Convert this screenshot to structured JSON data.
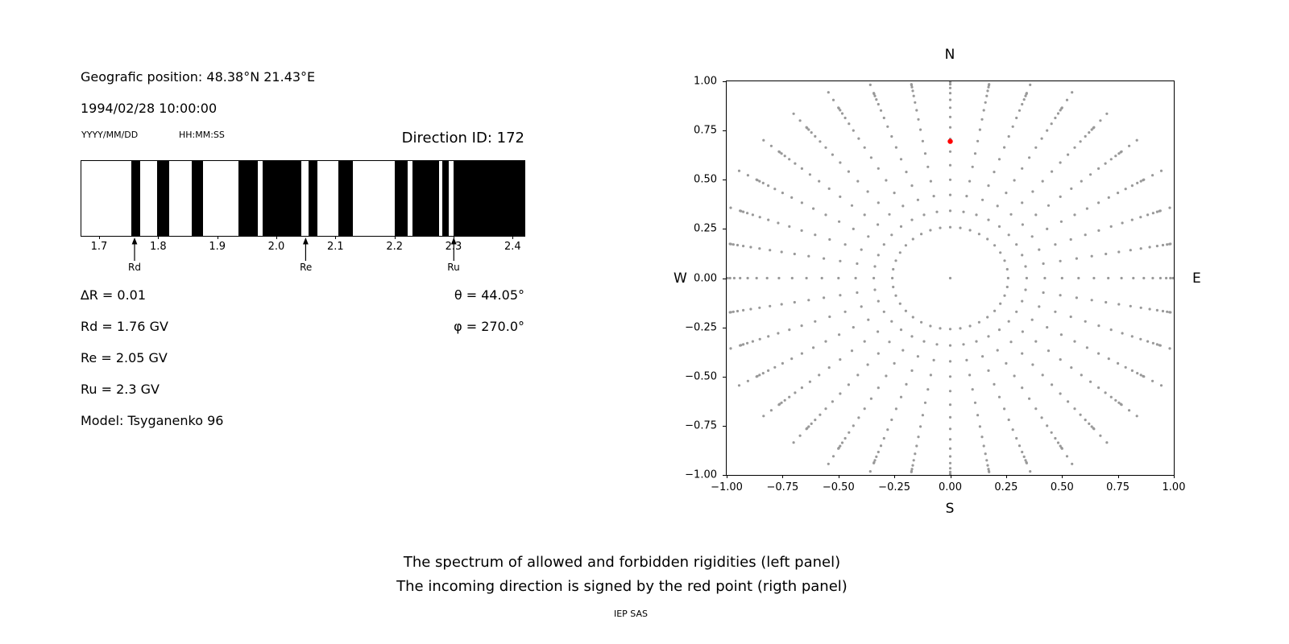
{
  "figure": {
    "background": "#ffffff",
    "text_color": "#000000"
  },
  "left_panel": {
    "geo_position": "Geografic position: 48.38°N 21.43°E",
    "datetime": "1994/02/28 10:00:00",
    "date_format_hint": "YYYY/MM/DD",
    "time_format_hint": "HH:MM:SS",
    "direction_id": "Direction ID: 172",
    "params": {
      "delta_r": "∆R = 0.01",
      "rd": "Rd = 1.76 GV",
      "re": "Re = 2.05 GV",
      "ru": "Ru = 2.3 GV",
      "model": "Model: Tsyganenko 96",
      "theta": "θ = 44.05°",
      "phi": "φ = 270.0°"
    }
  },
  "caption": {
    "line1": "The spectrum of allowed and forbidden rigidities (left panel)",
    "line2": "The incoming direction is signed by the red point (rigth panel)",
    "credit": "IEP SAS"
  },
  "chart_data": [
    {
      "id": "rigidity-spectrum",
      "type": "bar",
      "description": "Barcode-style spectrum: black bands = allowed rigidities, white = forbidden, penumbra between Rd and Ru",
      "xlim": [
        1.67,
        2.42
      ],
      "xtick_values": [
        1.7,
        1.8,
        1.9,
        2.0,
        2.1,
        2.2,
        2.3,
        2.4
      ],
      "xtick_labels": [
        "1.7",
        "1.8",
        "1.9",
        "2.0",
        "2.1",
        "2.2",
        "2.3",
        "2.4"
      ],
      "band_color": "#000000",
      "allowed_bands_gv": [
        [
          1.754,
          1.769
        ],
        [
          1.798,
          1.819
        ],
        [
          1.857,
          1.876
        ],
        [
          1.936,
          1.968
        ],
        [
          1.977,
          2.042
        ],
        [
          2.055,
          2.07
        ],
        [
          2.105,
          2.13
        ],
        [
          2.2,
          2.222
        ],
        [
          2.231,
          2.276
        ],
        [
          2.281,
          2.292
        ],
        [
          2.3,
          2.42
        ]
      ],
      "markers": [
        {
          "label": "Rd",
          "value": 1.76
        },
        {
          "label": "Re",
          "value": 2.05
        },
        {
          "label": "Ru",
          "value": 2.3
        }
      ]
    },
    {
      "id": "incoming-direction",
      "type": "scatter",
      "description": "Radial grid of gray direction dots (azimuth rays every 10 degrees, radii = sin(zenith)); red point marks the incoming direction",
      "xlim": [
        -1,
        1
      ],
      "ylim": [
        -1,
        1
      ],
      "xtick_values": [
        -1,
        -0.75,
        -0.5,
        -0.25,
        0,
        0.25,
        0.5,
        0.75,
        1
      ],
      "xtick_labels": [
        "−1.00",
        "−0.75",
        "−0.50",
        "−0.25",
        "0.00",
        "0.25",
        "0.50",
        "0.75",
        "1.00"
      ],
      "ytick_values": [
        1,
        0.75,
        0.5,
        0.25,
        0,
        -0.25,
        -0.5,
        -0.75,
        -1
      ],
      "ytick_labels": [
        "1.00",
        "0.75",
        "0.50",
        "0.25",
        "0.00",
        "−0.25",
        "−0.50",
        "−0.75",
        "−1.00"
      ],
      "compass": {
        "north": "N",
        "south": "S",
        "east": "E",
        "west": "W"
      },
      "grid": {
        "azimuth_start_deg": 0,
        "azimuth_step_deg": 10,
        "azimuth_count": 36,
        "ray_radii": [
          0.259,
          0.342,
          0.423,
          0.5,
          0.574,
          0.643,
          0.707,
          0.766,
          0.819,
          0.866,
          0.906,
          0.94,
          0.966,
          0.985,
          0.996,
          1.0,
          1.045,
          1.09
        ],
        "center_dot": true,
        "dot_color": "#999999"
      },
      "red_point": {
        "x": 0.0,
        "y": 0.695,
        "color": "#ff0000"
      }
    }
  ]
}
